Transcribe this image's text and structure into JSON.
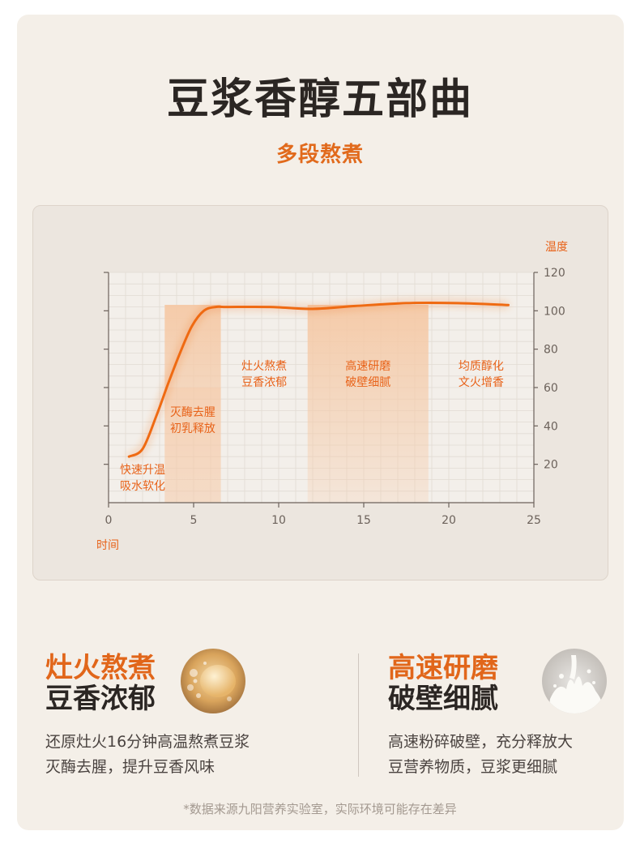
{
  "header": {
    "title": "豆浆香醇五部曲",
    "subtitle": "多段熬煮"
  },
  "chart_data": {
    "type": "line",
    "xlabel": "时间",
    "ylabel": "温度",
    "xlim": [
      0,
      25
    ],
    "ylim": [
      0,
      120
    ],
    "x_ticks": [
      0,
      5,
      10,
      15,
      20,
      25
    ],
    "y_ticks": [
      20,
      40,
      60,
      80,
      100,
      120
    ],
    "grid": true,
    "series": [
      {
        "x": [
          1.2,
          2.0,
          2.8,
          3.5,
          4.2,
          4.9,
          5.6,
          6.3,
          7.0,
          9.5,
          12.0,
          14.5,
          17.5,
          20.5,
          23.5
        ],
        "y": [
          24,
          28,
          45,
          62,
          78,
          92,
          100,
          102,
          102,
          102,
          101,
          102.5,
          104,
          104,
          103
        ]
      }
    ],
    "stages": [
      {
        "x_start": 0,
        "x_end": 3.3,
        "line1": "快速升温",
        "line2": "吸水软化"
      },
      {
        "x_start": 3.3,
        "x_end": 6.6,
        "line1": "灭酶去腥",
        "line2": "初乳释放"
      },
      {
        "x_start": 6.6,
        "x_end": 11.7,
        "line1": "灶火熬煮",
        "line2": "豆香浓郁"
      },
      {
        "x_start": 11.7,
        "x_end": 18.8,
        "line1": "高速研磨",
        "line2": "破壁细腻"
      },
      {
        "x_start": 18.8,
        "x_end": 25,
        "line1": "均质醇化",
        "line2": "文火增香"
      }
    ],
    "colors": {
      "line": "#ef6a12",
      "band": "#f5c9a6",
      "label": "#e8631a"
    }
  },
  "features": [
    {
      "title_line1": "灶火熬煮",
      "title_line2": "豆香浓郁",
      "desc_line1": "还原灶火16分钟高温熬煮豆浆",
      "desc_line2": "灭酶去腥，提升豆香风味",
      "icon": "soybean-bubble-icon"
    },
    {
      "title_line1": "高速研磨",
      "title_line2": "破壁细腻",
      "desc_line1": "高速粉碎破壁，充分释放大",
      "desc_line2": "豆营养物质，豆浆更细腻",
      "icon": "milk-splash-icon"
    }
  ],
  "footnote": "*数据来源九阳营养实验室，实际环境可能存在差异"
}
